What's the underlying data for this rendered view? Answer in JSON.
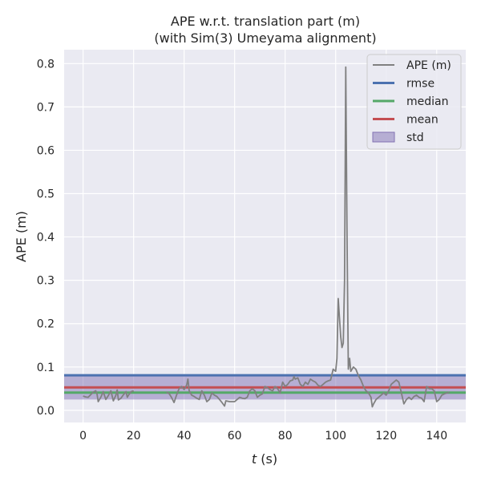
{
  "chart_data": {
    "type": "line",
    "title": "APE w.r.t. translation part (m)",
    "subtitle": "(with Sim(3) Umeyama alignment)",
    "xlabel_italic": "t",
    "xlabel_unit": " (s)",
    "ylabel": "APE (m)",
    "xlim": [
      -7.5,
      151.5
    ],
    "ylim": [
      -0.028,
      0.832
    ],
    "xticks": [
      0,
      20,
      40,
      60,
      80,
      100,
      120,
      140
    ],
    "yticks": [
      0.0,
      0.1,
      0.2,
      0.3,
      0.4,
      0.5,
      0.6,
      0.7,
      0.8
    ],
    "ytick_labels": [
      "0.0",
      "0.1",
      "0.2",
      "0.3",
      "0.4",
      "0.5",
      "0.6",
      "0.7",
      "0.8"
    ],
    "grid": true,
    "legend_position": "top-right",
    "stats": {
      "rmse": 0.081,
      "median": 0.041,
      "mean": 0.053,
      "std_low": 0.025,
      "std_high": 0.081
    },
    "series": [
      {
        "name": "APE (m)",
        "color": "#808080",
        "segments": [
          [
            [
              0,
              0.033
            ],
            [
              1,
              0.031
            ],
            [
              2,
              0.03
            ],
            [
              3,
              0.036
            ],
            [
              4,
              0.042
            ],
            [
              5,
              0.045
            ],
            [
              5.5,
              0.038
            ],
            [
              6,
              0.02
            ],
            [
              7,
              0.03
            ],
            [
              8,
              0.043
            ],
            [
              9,
              0.025
            ],
            [
              10,
              0.034
            ],
            [
              11,
              0.045
            ],
            [
              12,
              0.022
            ],
            [
              13,
              0.035
            ],
            [
              13.5,
              0.047
            ],
            [
              14,
              0.024
            ],
            [
              15,
              0.028
            ],
            [
              16,
              0.036
            ],
            [
              17,
              0.043
            ],
            [
              17.5,
              0.03
            ],
            [
              18,
              0.035
            ],
            [
              19,
              0.043
            ],
            [
              20,
              0.045
            ]
          ],
          [
            [
              33,
              0.042
            ],
            [
              34,
              0.039
            ],
            [
              35,
              0.03
            ],
            [
              36,
              0.018
            ],
            [
              37,
              0.035
            ],
            [
              38,
              0.05
            ],
            [
              39,
              0.055
            ],
            [
              40,
              0.048
            ],
            [
              41,
              0.058
            ],
            [
              41.5,
              0.072
            ],
            [
              42,
              0.045
            ],
            [
              43,
              0.035
            ],
            [
              44,
              0.032
            ],
            [
              45,
              0.028
            ],
            [
              46,
              0.025
            ],
            [
              47,
              0.045
            ],
            [
              48,
              0.035
            ],
            [
              49,
              0.02
            ],
            [
              50,
              0.025
            ],
            [
              51,
              0.04
            ],
            [
              52,
              0.035
            ],
            [
              53,
              0.032
            ],
            [
              54,
              0.025
            ],
            [
              55,
              0.018
            ],
            [
              56,
              0.01
            ],
            [
              56.5,
              0.022
            ],
            [
              58,
              0.02
            ],
            [
              60,
              0.02
            ],
            [
              61,
              0.025
            ],
            [
              62,
              0.03
            ],
            [
              63,
              0.028
            ],
            [
              64,
              0.027
            ],
            [
              65,
              0.03
            ],
            [
              66,
              0.045
            ],
            [
              67,
              0.05
            ],
            [
              68,
              0.045
            ],
            [
              69,
              0.03
            ],
            [
              70,
              0.035
            ],
            [
              71,
              0.038
            ],
            [
              72,
              0.055
            ],
            [
              73,
              0.052
            ],
            [
              74,
              0.048
            ],
            [
              75,
              0.045
            ],
            [
              76,
              0.055
            ],
            [
              77,
              0.05
            ],
            [
              78,
              0.04
            ],
            [
              79,
              0.065
            ],
            [
              80,
              0.055
            ],
            [
              81,
              0.06
            ],
            [
              82,
              0.068
            ],
            [
              83,
              0.07
            ],
            [
              83.5,
              0.078
            ],
            [
              84,
              0.072
            ],
            [
              85,
              0.075
            ],
            [
              86,
              0.06
            ],
            [
              87,
              0.055
            ],
            [
              88,
              0.065
            ],
            [
              89,
              0.06
            ],
            [
              90,
              0.072
            ],
            [
              91,
              0.068
            ],
            [
              92,
              0.065
            ],
            [
              93,
              0.058
            ],
            [
              94,
              0.055
            ],
            [
              95,
              0.06
            ],
            [
              96,
              0.065
            ],
            [
              97,
              0.068
            ],
            [
              98,
              0.07
            ],
            [
              99,
              0.095
            ],
            [
              100,
              0.09
            ],
            [
              100.5,
              0.12
            ],
            [
              101,
              0.258
            ],
            [
              102,
              0.17
            ],
            [
              102.5,
              0.145
            ],
            [
              103,
              0.155
            ],
            [
              103.5,
              0.3
            ],
            [
              104,
              0.792
            ],
            [
              104.5,
              0.4
            ],
            [
              105,
              0.095
            ],
            [
              105.5,
              0.12
            ],
            [
              106,
              0.09
            ],
            [
              107,
              0.1
            ],
            [
              108,
              0.095
            ],
            [
              109,
              0.08
            ],
            [
              110,
              0.07
            ],
            [
              111,
              0.055
            ],
            [
              112,
              0.045
            ],
            [
              113,
              0.04
            ],
            [
              114,
              0.03
            ],
            [
              114.5,
              0.008
            ],
            [
              115,
              0.015
            ],
            [
              116,
              0.025
            ],
            [
              117,
              0.03
            ],
            [
              118,
              0.035
            ],
            [
              119,
              0.04
            ],
            [
              120,
              0.035
            ],
            [
              121,
              0.045
            ],
            [
              122,
              0.06
            ],
            [
              123,
              0.065
            ],
            [
              124,
              0.07
            ],
            [
              125,
              0.065
            ],
            [
              126,
              0.04
            ],
            [
              127,
              0.015
            ],
            [
              128,
              0.025
            ],
            [
              129,
              0.03
            ],
            [
              130,
              0.025
            ],
            [
              131,
              0.032
            ],
            [
              132,
              0.035
            ],
            [
              133,
              0.03
            ],
            [
              134,
              0.028
            ],
            [
              135,
              0.02
            ],
            [
              136,
              0.055
            ],
            [
              137,
              0.05
            ],
            [
              138,
              0.05
            ],
            [
              139,
              0.045
            ],
            [
              140,
              0.02
            ],
            [
              141,
              0.025
            ],
            [
              142,
              0.035
            ],
            [
              143,
              0.038
            ],
            [
              144,
              0.04
            ],
            [
              145,
              0.042
            ]
          ]
        ]
      },
      {
        "name": "rmse",
        "color": "#4c72b0"
      },
      {
        "name": "median",
        "color": "#55a868"
      },
      {
        "name": "mean",
        "color": "#c44e52"
      },
      {
        "name": "std",
        "color": "#8172b3"
      }
    ]
  }
}
